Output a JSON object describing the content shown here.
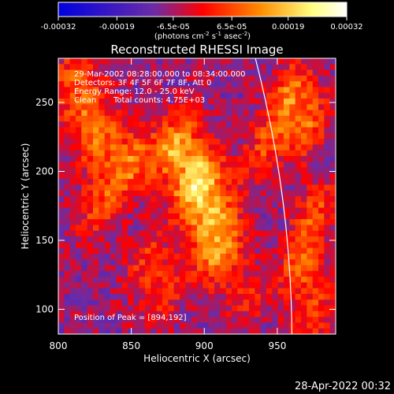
{
  "chart_data": {
    "type": "heatmap",
    "title": "Reconstructed RHESSI Image",
    "xlabel": "Heliocentric X (arcsec)",
    "ylabel": "Heliocentric Y (arcsec)",
    "xlim": [
      800,
      990
    ],
    "ylim": [
      82,
      282
    ],
    "x_ticks": [
      800,
      850,
      900,
      950
    ],
    "y_ticks": [
      100,
      150,
      200,
      250
    ],
    "colorbar": {
      "tick_labels": [
        "-0.00032",
        "-0.00019",
        "-6.5e-05",
        "6.5e-05",
        "0.00019",
        "0.00032"
      ],
      "tick_values": [
        -0.00032,
        -0.00019,
        -6.5e-05,
        6.5e-05,
        0.00019,
        0.00032
      ],
      "units_prefix": "(photons cm",
      "units_sup1": "-2",
      "units_mid1": " s",
      "units_sup2": "-1",
      "units_mid2": " asec",
      "units_sup3": "-2",
      "units_suffix": ")",
      "colors": [
        "#0000e0",
        "#6a2ca8",
        "#ff0000",
        "#ff8c00",
        "#ffff80",
        "#ffffff"
      ]
    },
    "annotations": {
      "time_range": "29-Mar-2002 08:28:00.000 to 08:34:00.000",
      "detectors": "Detectors: 3F 4F 5F 6F 7F 8F, Att 0",
      "energy": "Energy Range: 12.0 - 25.0 keV",
      "clean": "Clean",
      "total_counts": "Total counts: 4.75E+03",
      "peak": "Position of Peak = [894,192]"
    },
    "peak": [
      894,
      192
    ],
    "limb_arc": {
      "x": [
        935,
        960
      ],
      "y": [
        282,
        82
      ]
    },
    "sources": [
      {
        "x": 895,
        "y": 192,
        "value": 0.00032
      },
      {
        "x": 880,
        "y": 218,
        "value": 0.00024
      },
      {
        "x": 905,
        "y": 165,
        "value": 0.00022
      },
      {
        "x": 912,
        "y": 140,
        "value": 0.0002
      },
      {
        "x": 850,
        "y": 205,
        "value": 0.00018
      },
      {
        "x": 830,
        "y": 222,
        "value": 0.00016
      },
      {
        "x": 818,
        "y": 245,
        "value": 0.00015
      },
      {
        "x": 828,
        "y": 175,
        "value": 0.00012
      },
      {
        "x": 860,
        "y": 135,
        "value": 0.00011
      },
      {
        "x": 872,
        "y": 110,
        "value": 0.0001
      },
      {
        "x": 958,
        "y": 255,
        "value": 0.00018
      },
      {
        "x": 970,
        "y": 232,
        "value": 0.00016
      },
      {
        "x": 940,
        "y": 215,
        "value": 0.00012
      },
      {
        "x": 975,
        "y": 170,
        "value": 0.00014
      },
      {
        "x": 965,
        "y": 130,
        "value": 0.00015
      },
      {
        "x": 975,
        "y": 95,
        "value": 0.00013
      },
      {
        "x": 930,
        "y": 110,
        "value": 9e-05
      },
      {
        "x": 808,
        "y": 270,
        "value": 0.00012
      }
    ]
  },
  "footer": {
    "timestamp": "28-Apr-2022 00:32"
  }
}
